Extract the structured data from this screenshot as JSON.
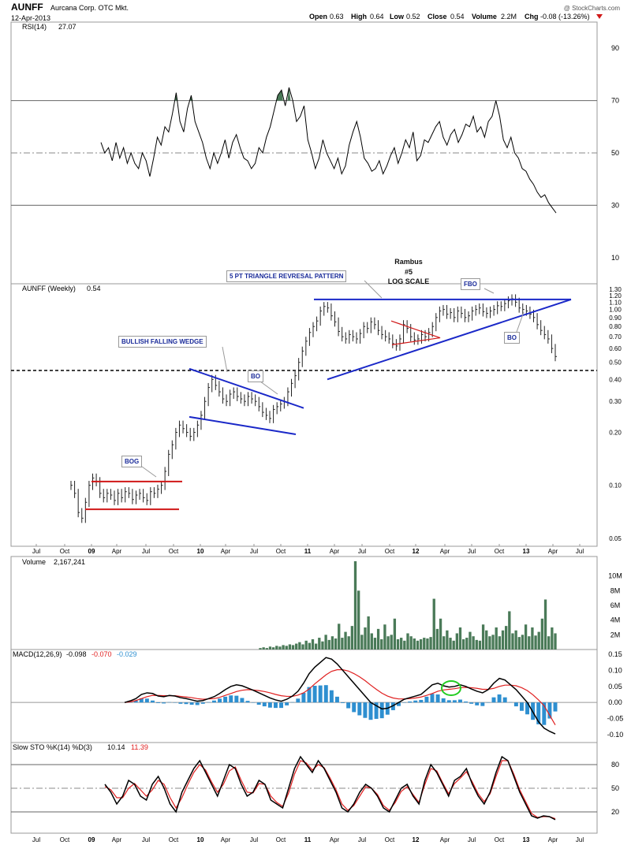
{
  "header": {
    "symbol": "AUNFF",
    "company": "Aurcana Corp. OTC Mkt.",
    "date": "12-Apr-2013",
    "quote": {
      "open_label": "Open",
      "open": "0.63",
      "high_label": "High",
      "high": "0.64",
      "low_label": "Low",
      "low": "0.52",
      "close_label": "Close",
      "close": "0.54",
      "volume_label": "Volume",
      "volume": "2.2M",
      "chg_label": "Chg",
      "chg": "-0.08 (-13.26%)"
    },
    "credit": "@ StockCharts.com"
  },
  "colors": {
    "price_bar": "#222222",
    "trendline_blue": "#1a28c8",
    "support_red": "#d01818",
    "volume_fill": "#4a7a58",
    "macd_hist": "#2e8fd0",
    "signal_red": "#e02020",
    "rsi_fill": "#4a7a58",
    "annotation_text": "#1a2b9a",
    "ellipse_green": "#22cc22"
  },
  "chart_data": [
    {
      "type": "line",
      "title": "RSI(14) 27.07",
      "legend_label": "RSI(14)",
      "legend_value": "27.07",
      "ylim": [
        0,
        100
      ],
      "y_ticks": [
        "90",
        "70",
        "50",
        "30",
        "10"
      ],
      "reference_lines": [
        70,
        50,
        30
      ],
      "series": [
        {
          "values": [
            54,
            50,
            52,
            47,
            54,
            48,
            52,
            46,
            50,
            46,
            44,
            50,
            47,
            41,
            48,
            56,
            53,
            60,
            58,
            65,
            73,
            62,
            58,
            67,
            72,
            62,
            58,
            54,
            48,
            44,
            50,
            46,
            50,
            55,
            48,
            54,
            57,
            52,
            48,
            47,
            44,
            46,
            52,
            50,
            56,
            60,
            66,
            72,
            74,
            68,
            75,
            70,
            62,
            64,
            68,
            55,
            50,
            44,
            48,
            55,
            50,
            47,
            44,
            48,
            42,
            45,
            53,
            58,
            62,
            56,
            48,
            46,
            43,
            44,
            47,
            42,
            45,
            49,
            52,
            46,
            50,
            55,
            52,
            58,
            47,
            49,
            55,
            54,
            57,
            60,
            62,
            56,
            53,
            57,
            59,
            54,
            57,
            61,
            60,
            64,
            58,
            60,
            56,
            62,
            64,
            70,
            64,
            55,
            52,
            56,
            50,
            48,
            44,
            43,
            40,
            38,
            35,
            33,
            34,
            31,
            29,
            27.07
          ]
        }
      ]
    },
    {
      "type": "line",
      "title": "AUNFF (Weekly) 0.54",
      "legend_label": "AUNFF (Weekly)",
      "legend_value": "0.54",
      "scale": "log",
      "ylim": [
        0.045,
        1.4
      ],
      "y_ticks": [
        "1.30",
        "1.20",
        "1.10",
        "1.00",
        "0.90",
        "0.80",
        "0.70",
        "0.60",
        "0.50",
        "0.40",
        "0.30",
        "0.20",
        "0.10",
        "0.05"
      ],
      "x_ticks": [
        "Jul",
        "Oct",
        "09",
        "Apr",
        "Jul",
        "Oct",
        "10",
        "Apr",
        "Jul",
        "Oct",
        "11",
        "Apr",
        "Jul",
        "Oct",
        "12",
        "Apr",
        "Jul",
        "Oct",
        "13",
        "Apr",
        "Jul"
      ],
      "series": [
        {
          "name": "AUNFF (Weekly)",
          "values": [
            0.1,
            0.09,
            0.07,
            0.065,
            0.08,
            0.1,
            0.11,
            0.105,
            0.09,
            0.085,
            0.09,
            0.088,
            0.082,
            0.09,
            0.085,
            0.092,
            0.09,
            0.083,
            0.088,
            0.09,
            0.085,
            0.082,
            0.092,
            0.09,
            0.095,
            0.1,
            0.12,
            0.15,
            0.17,
            0.2,
            0.22,
            0.21,
            0.2,
            0.19,
            0.2,
            0.22,
            0.25,
            0.3,
            0.36,
            0.4,
            0.37,
            0.34,
            0.31,
            0.3,
            0.33,
            0.34,
            0.32,
            0.31,
            0.3,
            0.32,
            0.31,
            0.3,
            0.28,
            0.26,
            0.25,
            0.24,
            0.27,
            0.28,
            0.29,
            0.3,
            0.34,
            0.38,
            0.42,
            0.5,
            0.58,
            0.66,
            0.74,
            0.8,
            0.86,
            0.98,
            1.04,
            1.02,
            0.92,
            0.85,
            0.75,
            0.7,
            0.68,
            0.72,
            0.7,
            0.68,
            0.73,
            0.8,
            0.78,
            0.85,
            0.82,
            0.76,
            0.72,
            0.7,
            0.68,
            0.64,
            0.62,
            0.68,
            0.82,
            0.78,
            0.7,
            0.67,
            0.68,
            0.72,
            0.7,
            0.74,
            0.8,
            0.9,
            0.98,
            1.0,
            0.94,
            0.96,
            0.9,
            0.98,
            0.95,
            0.9,
            0.92,
            0.98,
            1.0,
            1.02,
            0.97,
            0.95,
            0.98,
            1.0,
            1.05,
            1.04,
            1.08,
            1.12,
            1.15,
            1.1,
            1.02,
            1.0,
            0.98,
            0.94,
            0.9,
            0.82,
            0.76,
            0.72,
            0.68,
            0.6,
            0.54
          ]
        }
      ],
      "horizontal_line": 0.45,
      "annotations": [
        "BOG",
        "BULLISH FALLING WEDGE",
        "BO",
        "5 PT TRIANGLE REVRESAL PATTERN",
        "Rambus",
        "#5",
        "LOG SCALE",
        "FBO",
        "BO"
      ]
    },
    {
      "type": "bar",
      "title": "Volume 2,167,241",
      "legend_label": "Volume",
      "legend_value": "2,167,241",
      "ylim": [
        0,
        12000000
      ],
      "y_ticks": [
        "10M",
        "8M",
        "6M",
        "4M",
        "2M"
      ],
      "series": [
        {
          "name": "Volume",
          "values": [
            0.2,
            0.3,
            0.2,
            0.4,
            0.3,
            0.5,
            0.4,
            0.6,
            0.5,
            0.7,
            0.6,
            0.8,
            1.0,
            0.7,
            1.2,
            0.9,
            1.4,
            0.8,
            1.6,
            1.1,
            2.0,
            1.3,
            1.8,
            1.5,
            3.5,
            1.6,
            2.4,
            1.8,
            3.2,
            12.0,
            8.0,
            2.0,
            3.0,
            4.5,
            2.2,
            1.6,
            2.8,
            1.4,
            3.4,
            1.8,
            2.0,
            4.2,
            1.4,
            1.6,
            1.2,
            2.2,
            1.8,
            1.5,
            1.2,
            1.4,
            1.6,
            1.5,
            1.7,
            6.9,
            2.8,
            4.2,
            1.8,
            2.6,
            1.6,
            1.2,
            2.2,
            3.0,
            1.4,
            1.6,
            2.4,
            1.8,
            1.3,
            1.2,
            3.4,
            2.6,
            1.8,
            2.0,
            3.0,
            1.8,
            2.6,
            3.2,
            5.2,
            2.2,
            2.6,
            1.7,
            2.0,
            3.4,
            1.8,
            3.0,
            1.9,
            2.4,
            4.2,
            6.8,
            1.8,
            3.0,
            2.2
          ]
        }
      ]
    },
    {
      "type": "line",
      "title": "MACD(12,26,9) -0.098, -0.070, -0.029",
      "legend_label": "MACD(12,26,9)",
      "legend_values": [
        "-0.098",
        "-0.070",
        "-0.029"
      ],
      "ylim": [
        -0.11,
        0.16
      ],
      "y_ticks": [
        "0.15",
        "0.10",
        "0.05",
        "0.00",
        "-0.05",
        "-0.10"
      ],
      "series": [
        {
          "name": "MACD",
          "values": [
            0.0,
            0.005,
            0.012,
            0.025,
            0.03,
            0.028,
            0.02,
            0.018,
            0.022,
            0.02,
            0.015,
            0.012,
            0.008,
            0.004,
            0.006,
            0.012,
            0.018,
            0.028,
            0.04,
            0.05,
            0.055,
            0.052,
            0.045,
            0.038,
            0.03,
            0.022,
            0.014,
            0.008,
            0.004,
            0.01,
            0.02,
            0.035,
            0.06,
            0.09,
            0.11,
            0.125,
            0.14,
            0.135,
            0.12,
            0.1,
            0.08,
            0.06,
            0.04,
            0.02,
            0.0,
            -0.01,
            -0.02,
            -0.018,
            -0.01,
            0.0,
            0.01,
            0.015,
            0.02,
            0.025,
            0.04,
            0.055,
            0.06,
            0.052,
            0.048,
            0.05,
            0.055,
            0.05,
            0.042,
            0.035,
            0.03,
            0.04,
            0.06,
            0.075,
            0.07,
            0.055,
            0.04,
            0.02,
            0.0,
            -0.03,
            -0.06,
            -0.08,
            -0.09,
            -0.098
          ]
        },
        {
          "name": "Signal",
          "values": [
            0.0,
            0.002,
            0.006,
            0.012,
            0.018,
            0.022,
            0.022,
            0.021,
            0.021,
            0.021,
            0.019,
            0.017,
            0.015,
            0.012,
            0.01,
            0.011,
            0.012,
            0.016,
            0.022,
            0.028,
            0.034,
            0.038,
            0.04,
            0.039,
            0.037,
            0.034,
            0.03,
            0.025,
            0.021,
            0.019,
            0.019,
            0.023,
            0.03,
            0.042,
            0.058,
            0.072,
            0.086,
            0.097,
            0.102,
            0.102,
            0.098,
            0.09,
            0.08,
            0.068,
            0.054,
            0.041,
            0.029,
            0.02,
            0.014,
            0.011,
            0.011,
            0.012,
            0.014,
            0.017,
            0.022,
            0.028,
            0.035,
            0.039,
            0.041,
            0.043,
            0.046,
            0.047,
            0.046,
            0.044,
            0.041,
            0.041,
            0.044,
            0.05,
            0.054,
            0.054,
            0.052,
            0.046,
            0.037,
            0.024,
            0.008,
            -0.01,
            -0.04,
            -0.07
          ]
        }
      ]
    },
    {
      "type": "line",
      "title": "Slow STO %K(14) %D(3) 10.14, 11.39",
      "legend_label": "Slow STO %K(14) %D(3)",
      "legend_values": [
        "10.14",
        "11.39"
      ],
      "ylim": [
        0,
        100
      ],
      "y_ticks": [
        "80",
        "50",
        "20"
      ],
      "reference_lines": [
        80,
        50,
        20
      ],
      "series": [
        {
          "name": "%K",
          "values": [
            55,
            45,
            30,
            40,
            60,
            55,
            40,
            35,
            55,
            65,
            50,
            30,
            20,
            45,
            60,
            75,
            85,
            70,
            55,
            40,
            60,
            80,
            75,
            55,
            40,
            45,
            60,
            55,
            35,
            30,
            25,
            50,
            75,
            90,
            80,
            70,
            85,
            75,
            60,
            45,
            25,
            20,
            30,
            45,
            55,
            50,
            40,
            25,
            20,
            35,
            50,
            55,
            40,
            30,
            60,
            80,
            70,
            55,
            40,
            60,
            65,
            75,
            55,
            40,
            30,
            45,
            70,
            90,
            85,
            65,
            45,
            30,
            15,
            12,
            15,
            14,
            10.14
          ]
        },
        {
          "name": "%D",
          "values": [
            52,
            48,
            38,
            38,
            50,
            56,
            48,
            40,
            48,
            60,
            55,
            38,
            25,
            38,
            55,
            70,
            80,
            73,
            58,
            45,
            55,
            72,
            77,
            60,
            45,
            44,
            56,
            55,
            40,
            32,
            27,
            44,
            68,
            85,
            82,
            73,
            80,
            76,
            63,
            48,
            30,
            22,
            28,
            40,
            52,
            50,
            42,
            28,
            22,
            32,
            46,
            52,
            42,
            32,
            55,
            75,
            72,
            57,
            43,
            56,
            63,
            71,
            58,
            43,
            33,
            43,
            65,
            85,
            85,
            68,
            48,
            33,
            18,
            13,
            14,
            14,
            11.39
          ]
        }
      ],
      "x_ticks": [
        "Jul",
        "Oct",
        "09",
        "Apr",
        "Jul",
        "Oct",
        "10",
        "Apr",
        "Jul",
        "Oct",
        "11",
        "Apr",
        "Jul",
        "Oct",
        "12",
        "Apr",
        "Jul",
        "Oct",
        "13",
        "Apr",
        "Jul"
      ]
    }
  ]
}
